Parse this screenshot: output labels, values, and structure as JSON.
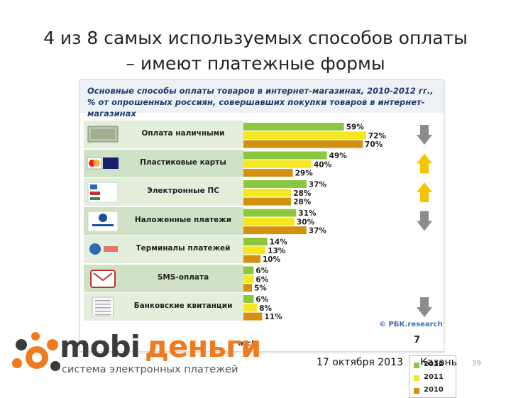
{
  "slide": {
    "title_line1": "4 из 8 самых используемых способов оплаты",
    "title_line2": "– имеют  платежные формы",
    "date": "17 октября 2013",
    "city": "Казань",
    "page_number": "39"
  },
  "panel": {
    "header_bold": "Основные способы оплаты товаров в интернет-магазинах, 2010-2012 гг., ",
    "header_italic": "% от опрошенных россиян, совершавших покупки товаров в интернет-магазинах",
    "source": "© РБК.research",
    "source_cut": "arch",
    "page": "7"
  },
  "brand": {
    "part1": "mobi",
    "part2": "деньги",
    "subtitle": "система электронных платежей"
  },
  "colors": {
    "y2012": "#8dc63f",
    "y2011": "#f7e71e",
    "y2010": "#d4900f",
    "row_light": "#ffffff",
    "row_dark": "#d9ead3",
    "arrow_down": "#8c8c8c",
    "arrow_up": "#f5c400"
  },
  "chart_data": {
    "type": "bar",
    "orientation": "horizontal",
    "categories": [
      "Оплата наличными",
      "Пластиковые карты",
      "Электронные ПС",
      "Наложенные платежи",
      "Терминалы платежей",
      "SMS-оплата",
      "Банковские квитанции"
    ],
    "series": [
      {
        "name": "2012",
        "values": [
          59,
          49,
          37,
          31,
          14,
          6,
          6
        ]
      },
      {
        "name": "2011",
        "values": [
          72,
          40,
          28,
          30,
          13,
          6,
          8
        ]
      },
      {
        "name": "2010",
        "values": [
          70,
          29,
          28,
          37,
          10,
          5,
          11
        ]
      }
    ],
    "value_labels": [
      [
        "59%",
        "72%",
        "70%"
      ],
      [
        "49%",
        "40%",
        "29%"
      ],
      [
        "37%",
        "28%",
        "28%"
      ],
      [
        "31%",
        "30%",
        "37%"
      ],
      [
        "14%",
        "13%",
        "10%"
      ],
      [
        "6%",
        "6%",
        "5%"
      ],
      [
        "6%",
        "8%",
        "11%"
      ]
    ],
    "trends": [
      "down",
      "up",
      "up",
      "down",
      "",
      "",
      "down"
    ],
    "legend": [
      "2012",
      "2011",
      "2010"
    ],
    "legend_position": "bottom-right",
    "icons": [
      "cash-icon",
      "card-logos-icon",
      "epay-logos-icon",
      "post-logo-icon",
      "terminal-logo-icon",
      "sms-icon",
      "receipt-icon"
    ]
  }
}
